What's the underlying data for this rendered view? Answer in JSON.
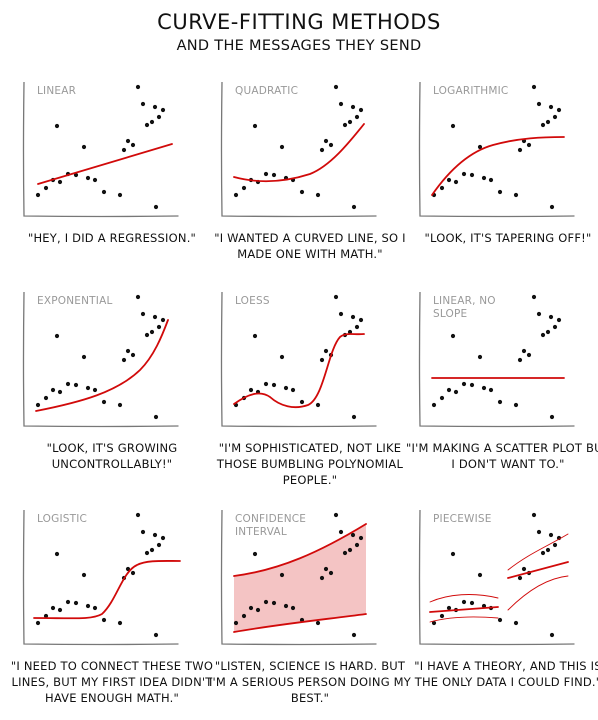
{
  "title": "CURVE-FITTING METHODS",
  "subtitle": "AND THE MESSAGES THEY SEND",
  "colors": {
    "fit": "#d10a0a",
    "band": "#f4c4c4",
    "axis": "#777777",
    "point": "#111111"
  },
  "panels": [
    {
      "label": "LINEAR",
      "caption": "\"HEY, I DID A REGRESSION.\""
    },
    {
      "label": "QUADRATIC",
      "caption": "\"I WANTED A CURVED LINE, SO I MADE ONE WITH MATH.\""
    },
    {
      "label": "LOGARITHMIC",
      "caption": "\"LOOK, IT'S TAPERING OFF!\""
    },
    {
      "label": "EXPONENTIAL",
      "caption": "\"LOOK, IT'S GROWING UNCONTROLLABLY!\""
    },
    {
      "label": "LOESS",
      "caption": "\"I'M SOPHISTICATED, NOT LIKE THOSE BUMBLING POLYNOMIAL PEOPLE.\""
    },
    {
      "label": "LINEAR, NO SLOPE",
      "caption": "\"I'M MAKING A SCATTER PLOT BUT I DON'T WANT TO.\""
    },
    {
      "label": "LOGISTIC",
      "caption": "\"I NEED TO CONNECT THESE TWO LINES, BUT MY FIRST IDEA DIDN'T HAVE ENOUGH MATH.\""
    },
    {
      "label": "CONFIDENCE INTERVAL",
      "caption": "\"LISTEN, SCIENCE IS HARD. BUT I'M A SERIOUS PERSON DOING MY BEST.\""
    },
    {
      "label": "PIECEWISE",
      "caption": "\"I HAVE A THEORY, AND THIS IS THE ONLY DATA I COULD FIND.\""
    }
  ]
}
